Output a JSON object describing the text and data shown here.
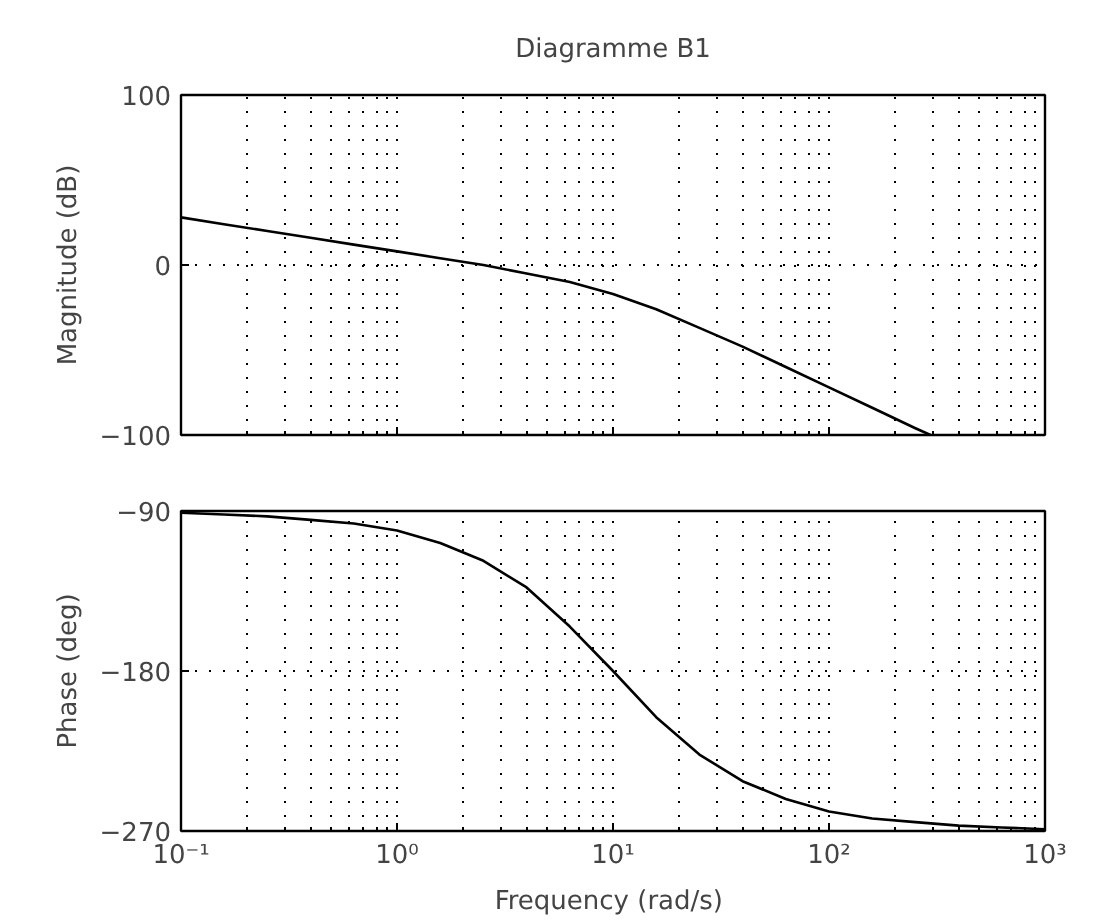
{
  "chart_data": [
    {
      "type": "line",
      "title": "Diagramme B1",
      "ylabel": "Magnitude (dB)",
      "log": "x",
      "grid": true,
      "tick_labels": "y",
      "line_style": "solid",
      "xlim": [
        0.1,
        1000
      ],
      "xticks": [
        {
          "value": 0.1,
          "label": null
        },
        {
          "value": 1,
          "label": null
        },
        {
          "value": 10,
          "label": null
        },
        {
          "value": 100,
          "label": null
        },
        {
          "value": 1000,
          "label": null
        }
      ],
      "ylim": [
        -100,
        100
      ],
      "yticks": [
        -100,
        0,
        100
      ],
      "series": [
        {
          "color": "#000000",
          "x": [
            0.1,
            0.158,
            0.251,
            0.398,
            0.631,
            1,
            1.585,
            2.512,
            3.981,
            6.31,
            10,
            15.85,
            25.12,
            39.81,
            63.1,
            100,
            158.5,
            251.2,
            295
          ],
          "values": [
            28,
            24,
            20,
            16,
            12,
            8,
            4,
            0,
            -5,
            -10,
            -17,
            -26,
            -37,
            -48,
            -60,
            -72,
            -84,
            -96,
            -100
          ]
        }
      ]
    },
    {
      "type": "line",
      "xlabel": "Frequency  (rad/s)",
      "ylabel": "Phase (deg)",
      "log": "x",
      "grid": true,
      "line_style": "solid",
      "xlim": [
        0.1,
        1000
      ],
      "xticks": [
        {
          "value": 0.1,
          "label": "10⁻¹"
        },
        {
          "value": 1,
          "label": "10⁰"
        },
        {
          "value": 10,
          "label": "10¹"
        },
        {
          "value": 100,
          "label": "10²"
        },
        {
          "value": 1000,
          "label": "10³"
        }
      ],
      "ylim": [
        -270,
        -90
      ],
      "yticks": [
        {
          "value": -270,
          "label": "−270"
        },
        {
          "value": -180,
          "label": "−180"
        },
        {
          "value": -90,
          "label": "−90"
        }
      ],
      "series": [
        {
          "color": "#000000",
          "x": [
            0.1,
            0.158,
            0.251,
            0.398,
            0.631,
            1,
            1.585,
            2.512,
            3.981,
            6.31,
            10,
            15.85,
            25.12,
            39.81,
            63.1,
            100,
            158.5,
            251.2,
            398.1,
            631,
            1000
          ],
          "values": [
            -91,
            -92,
            -93,
            -95,
            -97,
            -101,
            -108,
            -118,
            -133,
            -155,
            -180,
            -206,
            -227,
            -242,
            -252,
            -259,
            -263,
            -265,
            -267,
            -268,
            -269
          ]
        }
      ]
    }
  ]
}
